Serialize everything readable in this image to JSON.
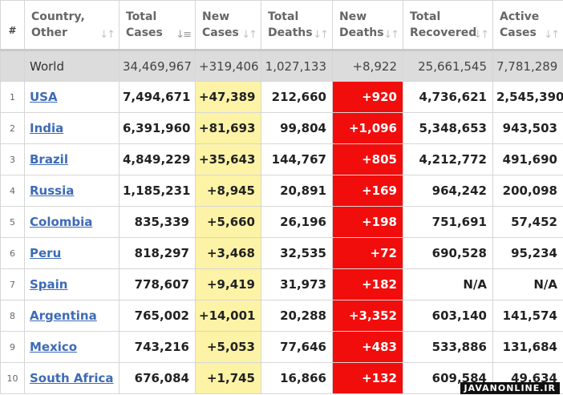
{
  "headers": {
    "rank": "#",
    "country": [
      "Country,",
      "Other"
    ],
    "total_cases": [
      "Total",
      "Cases"
    ],
    "new_cases": [
      "New",
      "Cases"
    ],
    "total_deaths": [
      "Total",
      "Deaths"
    ],
    "new_deaths": [
      "New",
      "Deaths"
    ],
    "total_recovered": [
      "Total",
      "Recovered"
    ],
    "active_cases": [
      "Active",
      "Cases"
    ]
  },
  "sort_icons": {
    "inactive": "↓↑",
    "active": "↓≡"
  },
  "world": {
    "country": "World",
    "total_cases": "34,469,967",
    "new_cases": "+319,406",
    "total_deaths": "1,027,133",
    "new_deaths": "+8,922",
    "total_recovered": "25,661,545",
    "active_cases": "7,781,289"
  },
  "rows": [
    {
      "rank": "1",
      "country": "USA",
      "total_cases": "7,494,671",
      "new_cases": "+47,389",
      "total_deaths": "212,660",
      "new_deaths": "+920",
      "total_recovered": "4,736,621",
      "active_cases": "2,545,390"
    },
    {
      "rank": "2",
      "country": "India",
      "total_cases": "6,391,960",
      "new_cases": "+81,693",
      "total_deaths": "99,804",
      "new_deaths": "+1,096",
      "total_recovered": "5,348,653",
      "active_cases": "943,503"
    },
    {
      "rank": "3",
      "country": "Brazil",
      "total_cases": "4,849,229",
      "new_cases": "+35,643",
      "total_deaths": "144,767",
      "new_deaths": "+805",
      "total_recovered": "4,212,772",
      "active_cases": "491,690"
    },
    {
      "rank": "4",
      "country": "Russia",
      "total_cases": "1,185,231",
      "new_cases": "+8,945",
      "total_deaths": "20,891",
      "new_deaths": "+169",
      "total_recovered": "964,242",
      "active_cases": "200,098"
    },
    {
      "rank": "5",
      "country": "Colombia",
      "total_cases": "835,339",
      "new_cases": "+5,660",
      "total_deaths": "26,196",
      "new_deaths": "+198",
      "total_recovered": "751,691",
      "active_cases": "57,452"
    },
    {
      "rank": "6",
      "country": "Peru",
      "total_cases": "818,297",
      "new_cases": "+3,468",
      "total_deaths": "32,535",
      "new_deaths": "+72",
      "total_recovered": "690,528",
      "active_cases": "95,234"
    },
    {
      "rank": "7",
      "country": "Spain",
      "total_cases": "778,607",
      "new_cases": "+9,419",
      "total_deaths": "31,973",
      "new_deaths": "+182",
      "total_recovered": "N/A",
      "active_cases": "N/A"
    },
    {
      "rank": "8",
      "country": "Argentina",
      "total_cases": "765,002",
      "new_cases": "+14,001",
      "total_deaths": "20,288",
      "new_deaths": "+3,352",
      "total_recovered": "603,140",
      "active_cases": "141,574"
    },
    {
      "rank": "9",
      "country": "Mexico",
      "total_cases": "743,216",
      "new_cases": "+5,053",
      "total_deaths": "77,646",
      "new_deaths": "+483",
      "total_recovered": "533,886",
      "active_cases": "131,684"
    },
    {
      "rank": "10",
      "country": "South Africa",
      "total_cases": "676,084",
      "new_cases": "+1,745",
      "total_deaths": "16,866",
      "new_deaths": "+132",
      "total_recovered": "609,584",
      "active_cases": "49,634"
    }
  ],
  "colors": {
    "new_cases_highlight": "#fcf3a6",
    "new_deaths_highlight": "#f20d0d",
    "link": "#3d6bb5",
    "world_row": "#dcdcdc"
  },
  "watermark": "JAVANONLINE.IR"
}
